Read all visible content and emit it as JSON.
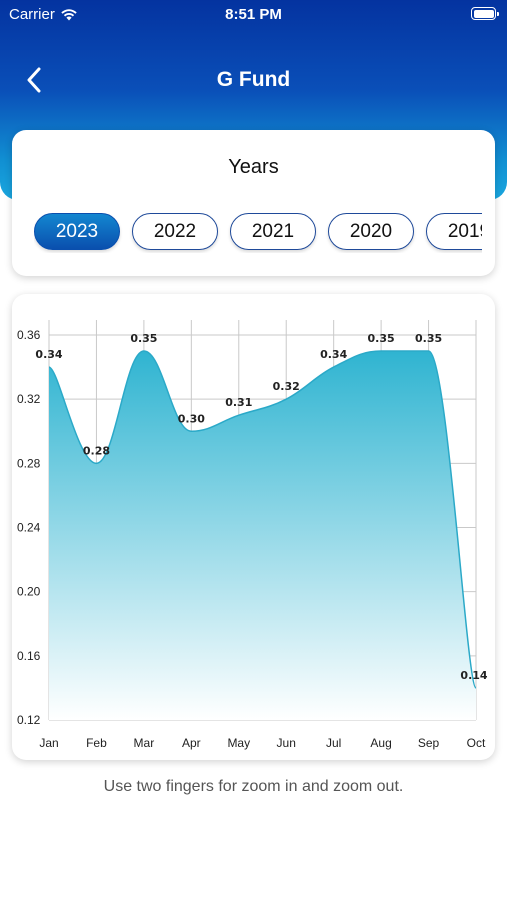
{
  "status_bar": {
    "carrier": "Carrier",
    "time": "8:51 PM"
  },
  "nav": {
    "title": "G Fund",
    "back_icon": "chevron-left-icon"
  },
  "years": {
    "title": "Years",
    "options": [
      "2023",
      "2022",
      "2021",
      "2020",
      "2019"
    ],
    "selected": "2023"
  },
  "chart_data": {
    "type": "area",
    "categories": [
      "Jan",
      "Feb",
      "Mar",
      "Apr",
      "May",
      "Jun",
      "Jul",
      "Aug",
      "Sep",
      "Oct"
    ],
    "values": [
      0.34,
      0.28,
      0.35,
      0.3,
      0.31,
      0.32,
      0.34,
      0.35,
      0.35,
      0.14
    ],
    "data_labels": [
      "0.34",
      "0.28",
      "0.35",
      "0.30",
      "0.31",
      "0.32",
      "0.34",
      "0.35",
      "0.35",
      "0.14"
    ],
    "yticks": [
      "0.36",
      "0.32",
      "0.28",
      "0.24",
      "0.20",
      "0.16",
      "0.12"
    ],
    "ylim": [
      0.12,
      0.36
    ],
    "grid": true,
    "colors": {
      "fill_top": "#2fb4d1",
      "fill_bottom": "#ffffff",
      "line": "#2ba9c8"
    }
  },
  "hint": "Use two fingers for zoom in and zoom out."
}
